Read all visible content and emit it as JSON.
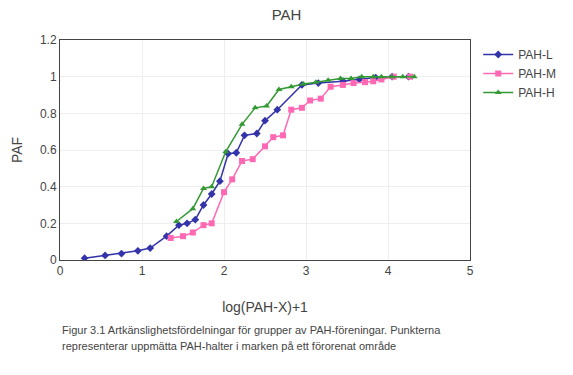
{
  "chart_data": {
    "type": "line",
    "title": "PAH",
    "xlabel": "log(PAH-X)+1",
    "ylabel": "PAF",
    "xlim": [
      0,
      5
    ],
    "ylim": [
      0.0,
      1.2
    ],
    "xticks": [
      0,
      1,
      2,
      3,
      4,
      5
    ],
    "yticks": [
      0.0,
      0.2,
      0.4,
      0.6,
      0.8,
      1.0,
      1.2
    ],
    "grid": true,
    "legend": "right",
    "series": [
      {
        "name": "PAH-L",
        "color": "#3333AA",
        "marker": "diamond",
        "x": [
          0.3,
          0.55,
          0.75,
          0.95,
          1.1,
          1.3,
          1.45,
          1.55,
          1.65,
          1.75,
          1.85,
          1.95,
          2.05,
          2.15,
          2.25,
          2.4,
          2.5,
          2.65,
          2.95,
          3.15,
          3.45,
          3.65,
          3.85,
          4.05,
          4.25
        ],
        "values": [
          0.01,
          0.025,
          0.035,
          0.05,
          0.065,
          0.13,
          0.19,
          0.2,
          0.22,
          0.3,
          0.36,
          0.43,
          0.58,
          0.585,
          0.68,
          0.69,
          0.76,
          0.82,
          0.955,
          0.965,
          0.975,
          0.985,
          0.995,
          1.0,
          1.0
        ]
      },
      {
        "name": "PAH-M",
        "color": "#FF69B4",
        "marker": "square",
        "x": [
          1.35,
          1.5,
          1.62,
          1.75,
          1.85,
          2.0,
          2.1,
          2.22,
          2.35,
          2.5,
          2.6,
          2.72,
          2.82,
          2.95,
          3.05,
          3.18,
          3.3,
          3.45,
          3.58,
          3.72,
          3.82,
          3.92,
          4.07,
          4.27
        ],
        "values": [
          0.12,
          0.13,
          0.15,
          0.19,
          0.2,
          0.37,
          0.44,
          0.54,
          0.55,
          0.62,
          0.67,
          0.68,
          0.82,
          0.83,
          0.87,
          0.88,
          0.945,
          0.955,
          0.965,
          0.97,
          0.975,
          0.985,
          1.0,
          1.0
        ]
      },
      {
        "name": "PAH-H",
        "color": "#339933",
        "marker": "triangle-up",
        "x": [
          1.42,
          1.62,
          1.75,
          1.85,
          2.02,
          2.22,
          2.38,
          2.52,
          2.67,
          2.82,
          2.97,
          3.12,
          3.27,
          3.42,
          3.55,
          3.68,
          3.82,
          3.92,
          4.05,
          4.18,
          4.32
        ],
        "values": [
          0.21,
          0.28,
          0.39,
          0.4,
          0.59,
          0.74,
          0.83,
          0.84,
          0.93,
          0.945,
          0.96,
          0.97,
          0.98,
          0.99,
          0.99,
          1.0,
          1.0,
          1.0,
          1.0,
          1.0,
          1.0
        ]
      }
    ],
    "annotations": [
      "Figur 3.1 Artkänslighetsfördelningar för grupper av PAH-föreningar. Punkterna",
      "representerar uppmätta PAH-halter i marken på ett förorenat område"
    ]
  }
}
